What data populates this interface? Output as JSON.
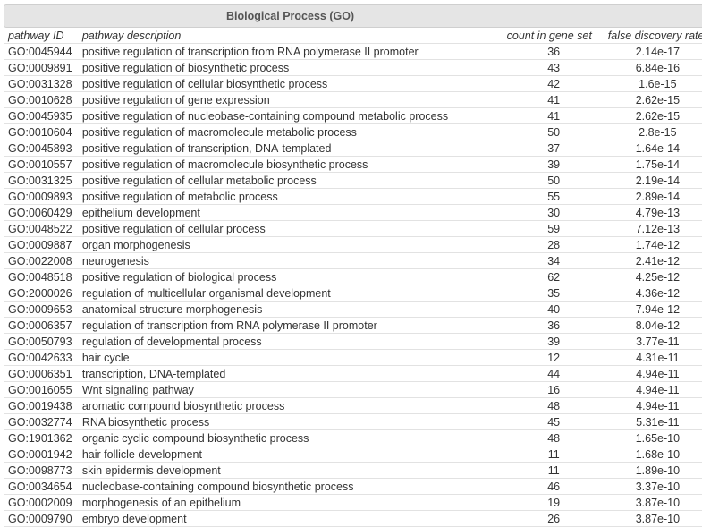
{
  "title": "Biological Process (GO)",
  "columns": [
    "pathway ID",
    "pathway description",
    "count in gene set",
    "false discovery rate"
  ],
  "rows": [
    [
      "GO:0045944",
      "positive regulation of transcription from RNA polymerase II promoter",
      "36",
      "2.14e-17"
    ],
    [
      "GO:0009891",
      "positive regulation of biosynthetic process",
      "43",
      "6.84e-16"
    ],
    [
      "GO:0031328",
      "positive regulation of cellular biosynthetic process",
      "42",
      "1.6e-15"
    ],
    [
      "GO:0010628",
      "positive regulation of gene expression",
      "41",
      "2.62e-15"
    ],
    [
      "GO:0045935",
      "positive regulation of nucleobase-containing compound metabolic process",
      "41",
      "2.62e-15"
    ],
    [
      "GO:0010604",
      "positive regulation of macromolecule metabolic process",
      "50",
      "2.8e-15"
    ],
    [
      "GO:0045893",
      "positive regulation of transcription, DNA-templated",
      "37",
      "1.64e-14"
    ],
    [
      "GO:0010557",
      "positive regulation of macromolecule biosynthetic process",
      "39",
      "1.75e-14"
    ],
    [
      "GO:0031325",
      "positive regulation of cellular metabolic process",
      "50",
      "2.19e-14"
    ],
    [
      "GO:0009893",
      "positive regulation of metabolic process",
      "55",
      "2.89e-14"
    ],
    [
      "GO:0060429",
      "epithelium development",
      "30",
      "4.79e-13"
    ],
    [
      "GO:0048522",
      "positive regulation of cellular process",
      "59",
      "7.12e-13"
    ],
    [
      "GO:0009887",
      "organ morphogenesis",
      "28",
      "1.74e-12"
    ],
    [
      "GO:0022008",
      "neurogenesis",
      "34",
      "2.41e-12"
    ],
    [
      "GO:0048518",
      "positive regulation of biological process",
      "62",
      "4.25e-12"
    ],
    [
      "GO:2000026",
      "regulation of multicellular organismal development",
      "35",
      "4.36e-12"
    ],
    [
      "GO:0009653",
      "anatomical structure morphogenesis",
      "40",
      "7.94e-12"
    ],
    [
      "GO:0006357",
      "regulation of transcription from RNA polymerase II promoter",
      "36",
      "8.04e-12"
    ],
    [
      "GO:0050793",
      "regulation of developmental process",
      "39",
      "3.77e-11"
    ],
    [
      "GO:0042633",
      "hair cycle",
      "12",
      "4.31e-11"
    ],
    [
      "GO:0006351",
      "transcription, DNA-templated",
      "44",
      "4.94e-11"
    ],
    [
      "GO:0016055",
      "Wnt signaling pathway",
      "16",
      "4.94e-11"
    ],
    [
      "GO:0019438",
      "aromatic compound biosynthetic process",
      "48",
      "4.94e-11"
    ],
    [
      "GO:0032774",
      "RNA biosynthetic process",
      "45",
      "5.31e-11"
    ],
    [
      "GO:1901362",
      "organic cyclic compound biosynthetic process",
      "48",
      "1.65e-10"
    ],
    [
      "GO:0001942",
      "hair follicle development",
      "11",
      "1.68e-10"
    ],
    [
      "GO:0098773",
      "skin epidermis development",
      "11",
      "1.89e-10"
    ],
    [
      "GO:0034654",
      "nucleobase-containing compound biosynthetic process",
      "46",
      "3.37e-10"
    ],
    [
      "GO:0002009",
      "morphogenesis of an epithelium",
      "19",
      "3.87e-10"
    ],
    [
      "GO:0009790",
      "embryo development",
      "26",
      "3.87e-10"
    ]
  ]
}
